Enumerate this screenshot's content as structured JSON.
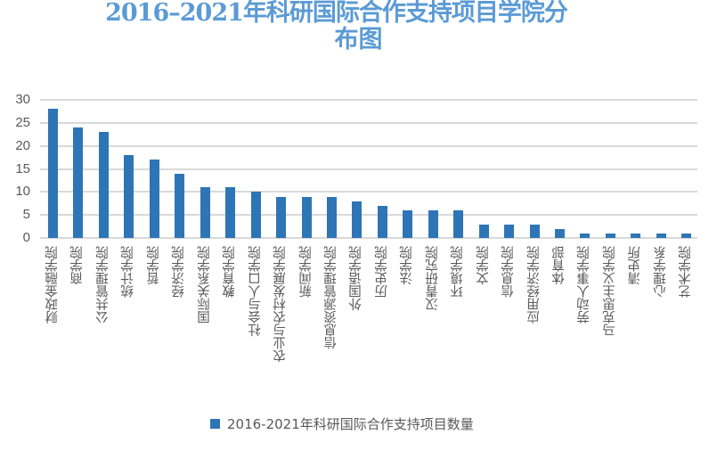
{
  "title": {
    "line1": "2016–2021年科研国际合作支持项目学院分",
    "line2": "布图"
  },
  "legend": {
    "label": "2016-2021年科研国际合作支持项目数量",
    "color": "#2e75b6"
  },
  "yaxis": {
    "ticks": [
      "30",
      "25",
      "20",
      "15",
      "10",
      "5",
      "0"
    ]
  },
  "chart_data": {
    "type": "bar",
    "title": "2016–2021年科研国际合作支持项目学院分布图",
    "xlabel": "",
    "ylabel": "",
    "ylim": [
      0,
      30
    ],
    "yticks": [
      0,
      5,
      10,
      15,
      20,
      25,
      30
    ],
    "grid": true,
    "legend_position": "bottom",
    "categories": [
      "财政金融学院",
      "商学院",
      "公共管理学院",
      "统计学院",
      "哲学院",
      "经济学院",
      "国际关系学院",
      "教育学院",
      "社会与人口学院",
      "农业与农村发展学院",
      "新闻学院",
      "信息资源管理学院",
      "外国语学院",
      "历史学院",
      "法学院",
      "汉青研究院",
      "环境学院",
      "文学院",
      "信息学院",
      "应用经济学院",
      "体育部",
      "劳动人事学院",
      "马克思主义学院",
      "清史所",
      "心理学系",
      "艺术学院"
    ],
    "series": [
      {
        "name": "2016-2021年科研国际合作支持项目数量",
        "color": "#2e75b6",
        "values": [
          28,
          24,
          23,
          18,
          17,
          14,
          11,
          11,
          10,
          9,
          9,
          9,
          8,
          7,
          6,
          6,
          6,
          3,
          3,
          3,
          2,
          1,
          1,
          1,
          1,
          1
        ]
      }
    ]
  }
}
